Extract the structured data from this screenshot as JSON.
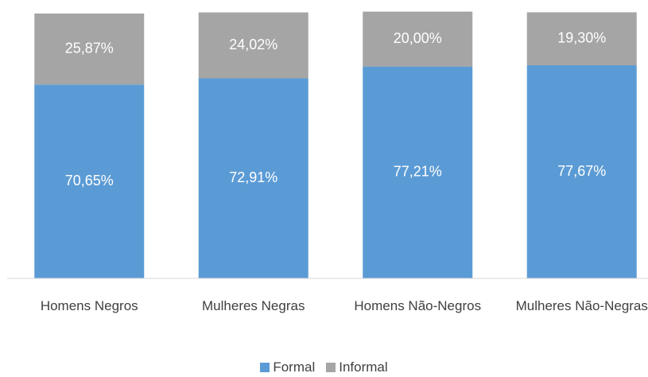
{
  "chart_data": {
    "type": "stacked_bar",
    "categories": [
      "Homens Negros",
      "Mulheres Negras",
      "Homens Não-Negros",
      "Mulheres Não-Negras"
    ],
    "series": [
      {
        "name": "Formal",
        "color": "#5b9bd5",
        "values": [
          70.65,
          72.91,
          77.21,
          77.67
        ],
        "value_labels": [
          "70,65%",
          "72,91%",
          "77,21%",
          "77,67%"
        ]
      },
      {
        "name": "Informal",
        "color": "#a5a5a5",
        "values": [
          25.87,
          24.02,
          20.0,
          19.3
        ],
        "value_labels": [
          "25,87%",
          "24,02%",
          "20,00%",
          "19,30%"
        ]
      }
    ],
    "ylim": [
      0,
      100
    ],
    "legend": "bottom"
  }
}
